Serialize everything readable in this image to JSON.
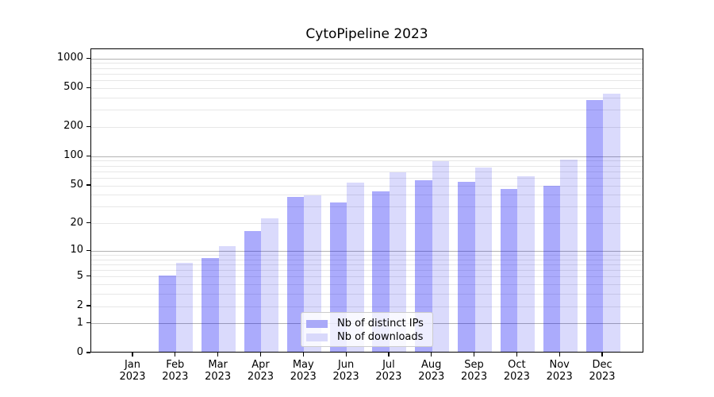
{
  "chart_data": {
    "type": "bar",
    "title": "CytoPipeline 2023",
    "categories": [
      "Jan 2023",
      "Feb 2023",
      "Mar 2023",
      "Apr 2023",
      "May 2023",
      "Jun 2023",
      "Jul 2023",
      "Aug 2023",
      "Sep 2023",
      "Oct 2023",
      "Nov 2023",
      "Dec 2023"
    ],
    "series": [
      {
        "name": "Nb of distinct IPs",
        "color": "rgba(10,10,245,0.34)",
        "swatch_hex": "#a9a9f8",
        "values": [
          0,
          5,
          8,
          16,
          37,
          32,
          42,
          55,
          53,
          45,
          48,
          369
        ]
      },
      {
        "name": "Nb of downloads",
        "color": "rgba(10,10,235,0.15)",
        "swatch_hex": "#d9d9fb",
        "values": [
          0,
          7,
          11,
          22,
          38,
          52,
          67,
          87,
          75,
          61,
          90,
          430
        ]
      }
    ],
    "xlabel": "",
    "ylabel": "",
    "y_scale": "log1p",
    "y_ticks": [
      0,
      1,
      2,
      5,
      10,
      20,
      50,
      100,
      200,
      500,
      1000
    ],
    "y_major_gridlines": [
      1,
      10,
      100,
      1000
    ],
    "ylim": [
      0,
      1258
    ],
    "grid": true,
    "legend_position": "lower center",
    "colors": {
      "major_grid": "#b2b2b2",
      "minor_grid": "#e7e7e7",
      "axis": "#000000",
      "background": "#ffffff"
    }
  }
}
